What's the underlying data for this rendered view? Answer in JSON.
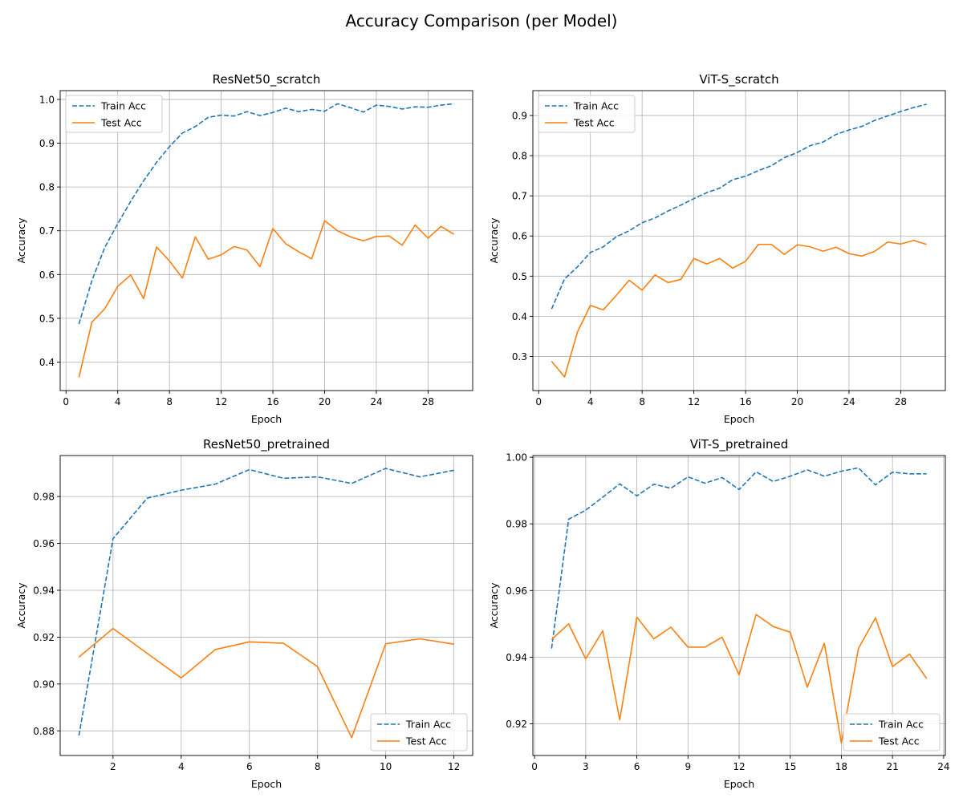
{
  "suptitle": "Accuracy Comparison (per Model)",
  "colors": {
    "train": "#1f77b4",
    "test": "#ff7f0e",
    "grid": "#b0b0b0"
  },
  "chart_data": [
    {
      "type": "line",
      "title": "ResNet50_scratch",
      "xlabel": "Epoch",
      "ylabel": "Accuracy",
      "xlim": [
        -0.45,
        31.45
      ],
      "ylim": [
        0.335,
        1.02
      ],
      "xticks": [
        0,
        4,
        8,
        12,
        16,
        20,
        24,
        28
      ],
      "yticks": [
        0.4,
        0.5,
        0.6,
        0.7,
        0.8,
        0.9,
        1.0
      ],
      "ytick_labels": [
        "0.4",
        "0.5",
        "0.6",
        "0.7",
        "0.8",
        "0.9",
        "1.0"
      ],
      "grid": true,
      "legend_position": "top-left",
      "x": [
        1,
        2,
        3,
        4,
        5,
        6,
        7,
        8,
        9,
        10,
        11,
        12,
        13,
        14,
        15,
        16,
        17,
        18,
        19,
        20,
        21,
        22,
        23,
        24,
        25,
        26,
        27,
        28,
        29,
        30
      ],
      "series": [
        {
          "name": "Train Acc",
          "style": "dashed",
          "values": [
            0.487,
            0.586,
            0.662,
            0.716,
            0.767,
            0.814,
            0.856,
            0.892,
            0.923,
            0.938,
            0.959,
            0.964,
            0.962,
            0.972,
            0.963,
            0.97,
            0.98,
            0.972,
            0.977,
            0.973,
            0.99,
            0.981,
            0.971,
            0.987,
            0.984,
            0.978,
            0.983,
            0.982,
            0.987,
            0.99
          ]
        },
        {
          "name": "Test Acc",
          "style": "solid",
          "values": [
            0.365,
            0.491,
            0.522,
            0.573,
            0.599,
            0.545,
            0.663,
            0.631,
            0.592,
            0.686,
            0.635,
            0.645,
            0.664,
            0.656,
            0.618,
            0.705,
            0.67,
            0.652,
            0.636,
            0.723,
            0.7,
            0.686,
            0.677,
            0.687,
            0.688,
            0.667,
            0.713,
            0.683,
            0.71,
            0.692
          ]
        }
      ]
    },
    {
      "type": "line",
      "title": "ViT-S_scratch",
      "xlabel": "Epoch",
      "ylabel": "Accuracy",
      "xlim": [
        -0.45,
        31.45
      ],
      "ylim": [
        0.215,
        0.962
      ],
      "xticks": [
        0,
        4,
        8,
        12,
        16,
        20,
        24,
        28
      ],
      "yticks": [
        0.3,
        0.4,
        0.5,
        0.6,
        0.7,
        0.8,
        0.9
      ],
      "ytick_labels": [
        "0.3",
        "0.4",
        "0.5",
        "0.6",
        "0.7",
        "0.8",
        "0.9"
      ],
      "grid": true,
      "legend_position": "top-left",
      "x": [
        1,
        2,
        3,
        4,
        5,
        6,
        7,
        8,
        9,
        10,
        11,
        12,
        13,
        14,
        15,
        16,
        17,
        18,
        19,
        20,
        21,
        22,
        23,
        24,
        25,
        26,
        27,
        28,
        29,
        30
      ],
      "series": [
        {
          "name": "Train Acc",
          "style": "dashed",
          "values": [
            0.418,
            0.493,
            0.523,
            0.559,
            0.573,
            0.598,
            0.613,
            0.633,
            0.645,
            0.662,
            0.677,
            0.693,
            0.708,
            0.719,
            0.74,
            0.749,
            0.763,
            0.775,
            0.795,
            0.808,
            0.825,
            0.834,
            0.853,
            0.864,
            0.873,
            0.888,
            0.899,
            0.91,
            0.92,
            0.928
          ]
        },
        {
          "name": "Test Acc",
          "style": "solid",
          "values": [
            0.288,
            0.249,
            0.361,
            0.427,
            0.416,
            0.452,
            0.49,
            0.465,
            0.503,
            0.484,
            0.492,
            0.544,
            0.53,
            0.544,
            0.52,
            0.537,
            0.579,
            0.579,
            0.554,
            0.578,
            0.573,
            0.562,
            0.572,
            0.556,
            0.55,
            0.562,
            0.585,
            0.58,
            0.589,
            0.579
          ]
        }
      ]
    },
    {
      "type": "line",
      "title": "ResNet50_pretrained",
      "xlabel": "Epoch",
      "ylabel": "Accuracy",
      "xlim": [
        0.45,
        12.55
      ],
      "ylim": [
        0.8695,
        0.9975
      ],
      "xticks": [
        2,
        4,
        6,
        8,
        10,
        12
      ],
      "yticks": [
        0.88,
        0.9,
        0.92,
        0.94,
        0.96,
        0.98
      ],
      "ytick_labels": [
        "0.88",
        "0.90",
        "0.92",
        "0.94",
        "0.96",
        "0.98"
      ],
      "grid": true,
      "legend_position": "bottom-right",
      "x": [
        1,
        2,
        3,
        4,
        5,
        6,
        7,
        8,
        9,
        10,
        11,
        12
      ],
      "series": [
        {
          "name": "Train Acc",
          "style": "dashed",
          "values": [
            0.878,
            0.962,
            0.9793,
            0.9827,
            0.9853,
            0.9915,
            0.9878,
            0.9884,
            0.9856,
            0.992,
            0.9884,
            0.9912
          ]
        },
        {
          "name": "Test Acc",
          "style": "solid",
          "values": [
            0.9115,
            0.9237,
            0.9131,
            0.9026,
            0.9147,
            0.918,
            0.9174,
            0.9074,
            0.8771,
            0.9172,
            0.9193,
            0.917
          ]
        }
      ]
    },
    {
      "type": "line",
      "title": "ViT-S_pretrained",
      "xlabel": "Epoch",
      "ylabel": "Accuracy",
      "xlim": [
        -0.1,
        24.1
      ],
      "ylim": [
        0.9105,
        1.0005
      ],
      "xticks": [
        0,
        3,
        6,
        9,
        12,
        15,
        18,
        21,
        24
      ],
      "yticks": [
        0.92,
        0.94,
        0.96,
        0.98,
        1.0
      ],
      "ytick_labels": [
        "0.92",
        "0.94",
        "0.96",
        "0.98",
        "1.00"
      ],
      "grid": true,
      "legend_position": "bottom-right",
      "x": [
        1,
        2,
        3,
        4,
        5,
        6,
        7,
        8,
        9,
        10,
        11,
        12,
        13,
        14,
        15,
        16,
        17,
        18,
        19,
        20,
        21,
        22,
        23
      ],
      "series": [
        {
          "name": "Train Acc",
          "style": "dashed",
          "values": [
            0.9426,
            0.9814,
            0.9841,
            0.988,
            0.992,
            0.9884,
            0.9919,
            0.9907,
            0.9941,
            0.9922,
            0.9939,
            0.9903,
            0.9956,
            0.9927,
            0.9943,
            0.9962,
            0.9943,
            0.9958,
            0.9968,
            0.9917,
            0.9955,
            0.995,
            0.995
          ]
        },
        {
          "name": "Test Acc",
          "style": "solid",
          "values": [
            0.9453,
            0.95,
            0.9395,
            0.9479,
            0.9212,
            0.952,
            0.9455,
            0.949,
            0.943,
            0.943,
            0.946,
            0.9347,
            0.9528,
            0.9492,
            0.9475,
            0.931,
            0.9442,
            0.9142,
            0.9426,
            0.9518,
            0.9372,
            0.9409,
            0.9336
          ]
        }
      ]
    }
  ]
}
